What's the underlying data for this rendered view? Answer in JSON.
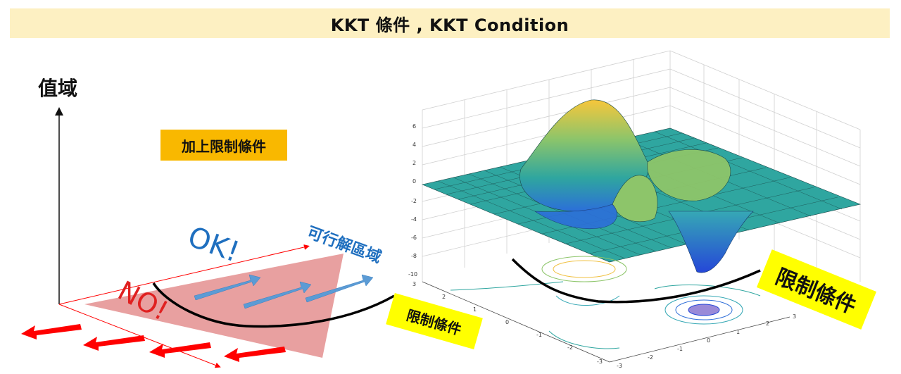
{
  "header": {
    "title": "KKT 條件 , KKT Condition"
  },
  "left_diagram": {
    "y_axis_label": "值域",
    "constraint_box_label": "加上限制條件",
    "ok_label": "OK!",
    "no_label": "NO!",
    "feasible_region_label": "可行解區域",
    "constraint_tag": "限制條件"
  },
  "surface_plot": {
    "constraint_tag": "限制條件",
    "z_ticks": [
      "6",
      "4",
      "2",
      "0",
      "-2",
      "-4",
      "-6",
      "-8",
      "-10"
    ],
    "x_ticks": [
      "-3",
      "-2",
      "-1",
      "0",
      "1",
      "2",
      "3"
    ],
    "y_ticks": [
      "3",
      "2",
      "1",
      "0",
      "-1",
      "-2",
      "-3"
    ]
  },
  "colors": {
    "banner": "#fdf0c2",
    "constraint_box": "#f9b800",
    "tag_yellow": "#ffff00",
    "feasible_region": "#e8a0a0",
    "ok_text": "#1f6fbf",
    "no_text": "#e02020",
    "blue_arrows": "#5b9bd5",
    "red_arrows": "#ff0000"
  }
}
